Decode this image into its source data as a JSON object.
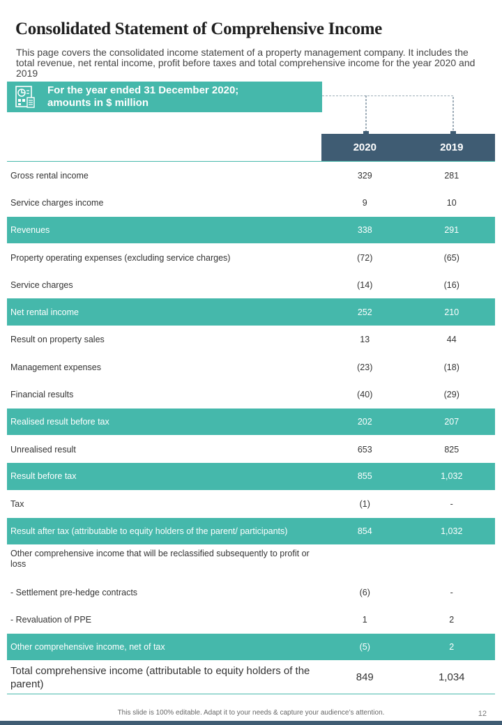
{
  "title": "Consolidated Statement of Comprehensive Income",
  "intro": "This page covers the consolidated income statement of a property management company. It includes the total revenue, net rental income, profit before taxes and total comprehensive income for the year 2020 and 2019",
  "banner": {
    "line1": "For the year ended 31 December 2020;",
    "line2": "amounts in $ million",
    "icon": "financial-report-icon"
  },
  "columns": [
    "2020",
    "2019"
  ],
  "rows": [
    {
      "label": "Gross rental income",
      "v2020": "329",
      "v2019": "281",
      "highlight": false
    },
    {
      "label": "Service charges income",
      "v2020": "9",
      "v2019": "10",
      "highlight": false
    },
    {
      "label": "Revenues",
      "v2020": "338",
      "v2019": "291",
      "highlight": true
    },
    {
      "label": "Property operating expenses (excluding service charges)",
      "v2020": "(72)",
      "v2019": "(65)",
      "highlight": false
    },
    {
      "label": "Service charges",
      "v2020": "(14)",
      "v2019": "(16)",
      "highlight": false
    },
    {
      "label": "Net rental income",
      "v2020": "252",
      "v2019": "210",
      "highlight": true
    },
    {
      "label": "Result on property sales",
      "v2020": "13",
      "v2019": "44",
      "highlight": false
    },
    {
      "label": "Management expenses",
      "v2020": "(23)",
      "v2019": "(18)",
      "highlight": false
    },
    {
      "label": "Financial results",
      "v2020": "(40)",
      "v2019": "(29)",
      "highlight": false
    },
    {
      "label": "Realised result before tax",
      "v2020": "202",
      "v2019": "207",
      "highlight": true
    },
    {
      "label": "Unrealised result",
      "v2020": "653",
      "v2019": "825",
      "highlight": false
    },
    {
      "label": "Result before tax",
      "v2020": "855",
      "v2019": "1,032",
      "highlight": true
    },
    {
      "label": "Tax",
      "v2020": "(1)",
      "v2019": "-",
      "highlight": false
    },
    {
      "label": "Result after tax (attributable to equity holders of the parent/ participants)",
      "v2020": "854",
      "v2019": "1,032",
      "highlight": true
    },
    {
      "label": "Other comprehensive income that will be reclassified subsequently to profit or loss",
      "v2020": "",
      "v2019": "",
      "highlight": false
    },
    {
      "label": "- Settlement pre-hedge contracts",
      "v2020": "(6)",
      "v2019": "-",
      "highlight": false
    },
    {
      "label": "- Revaluation of PPE",
      "v2020": "1",
      "v2019": "2",
      "highlight": false
    },
    {
      "label": "Other comprehensive income, net of tax",
      "v2020": "(5)",
      "v2019": "2",
      "highlight": true
    }
  ],
  "total": {
    "label": "Total comprehensive income (attributable to equity holders of the parent)",
    "v2020": "849",
    "v2019": "1,034"
  },
  "footer": "This slide is 100% editable. Adapt it to your needs & capture your audience’s attention.",
  "page_number": "12",
  "colors": {
    "teal": "#45b8ab",
    "navy": "#3f5c73"
  }
}
